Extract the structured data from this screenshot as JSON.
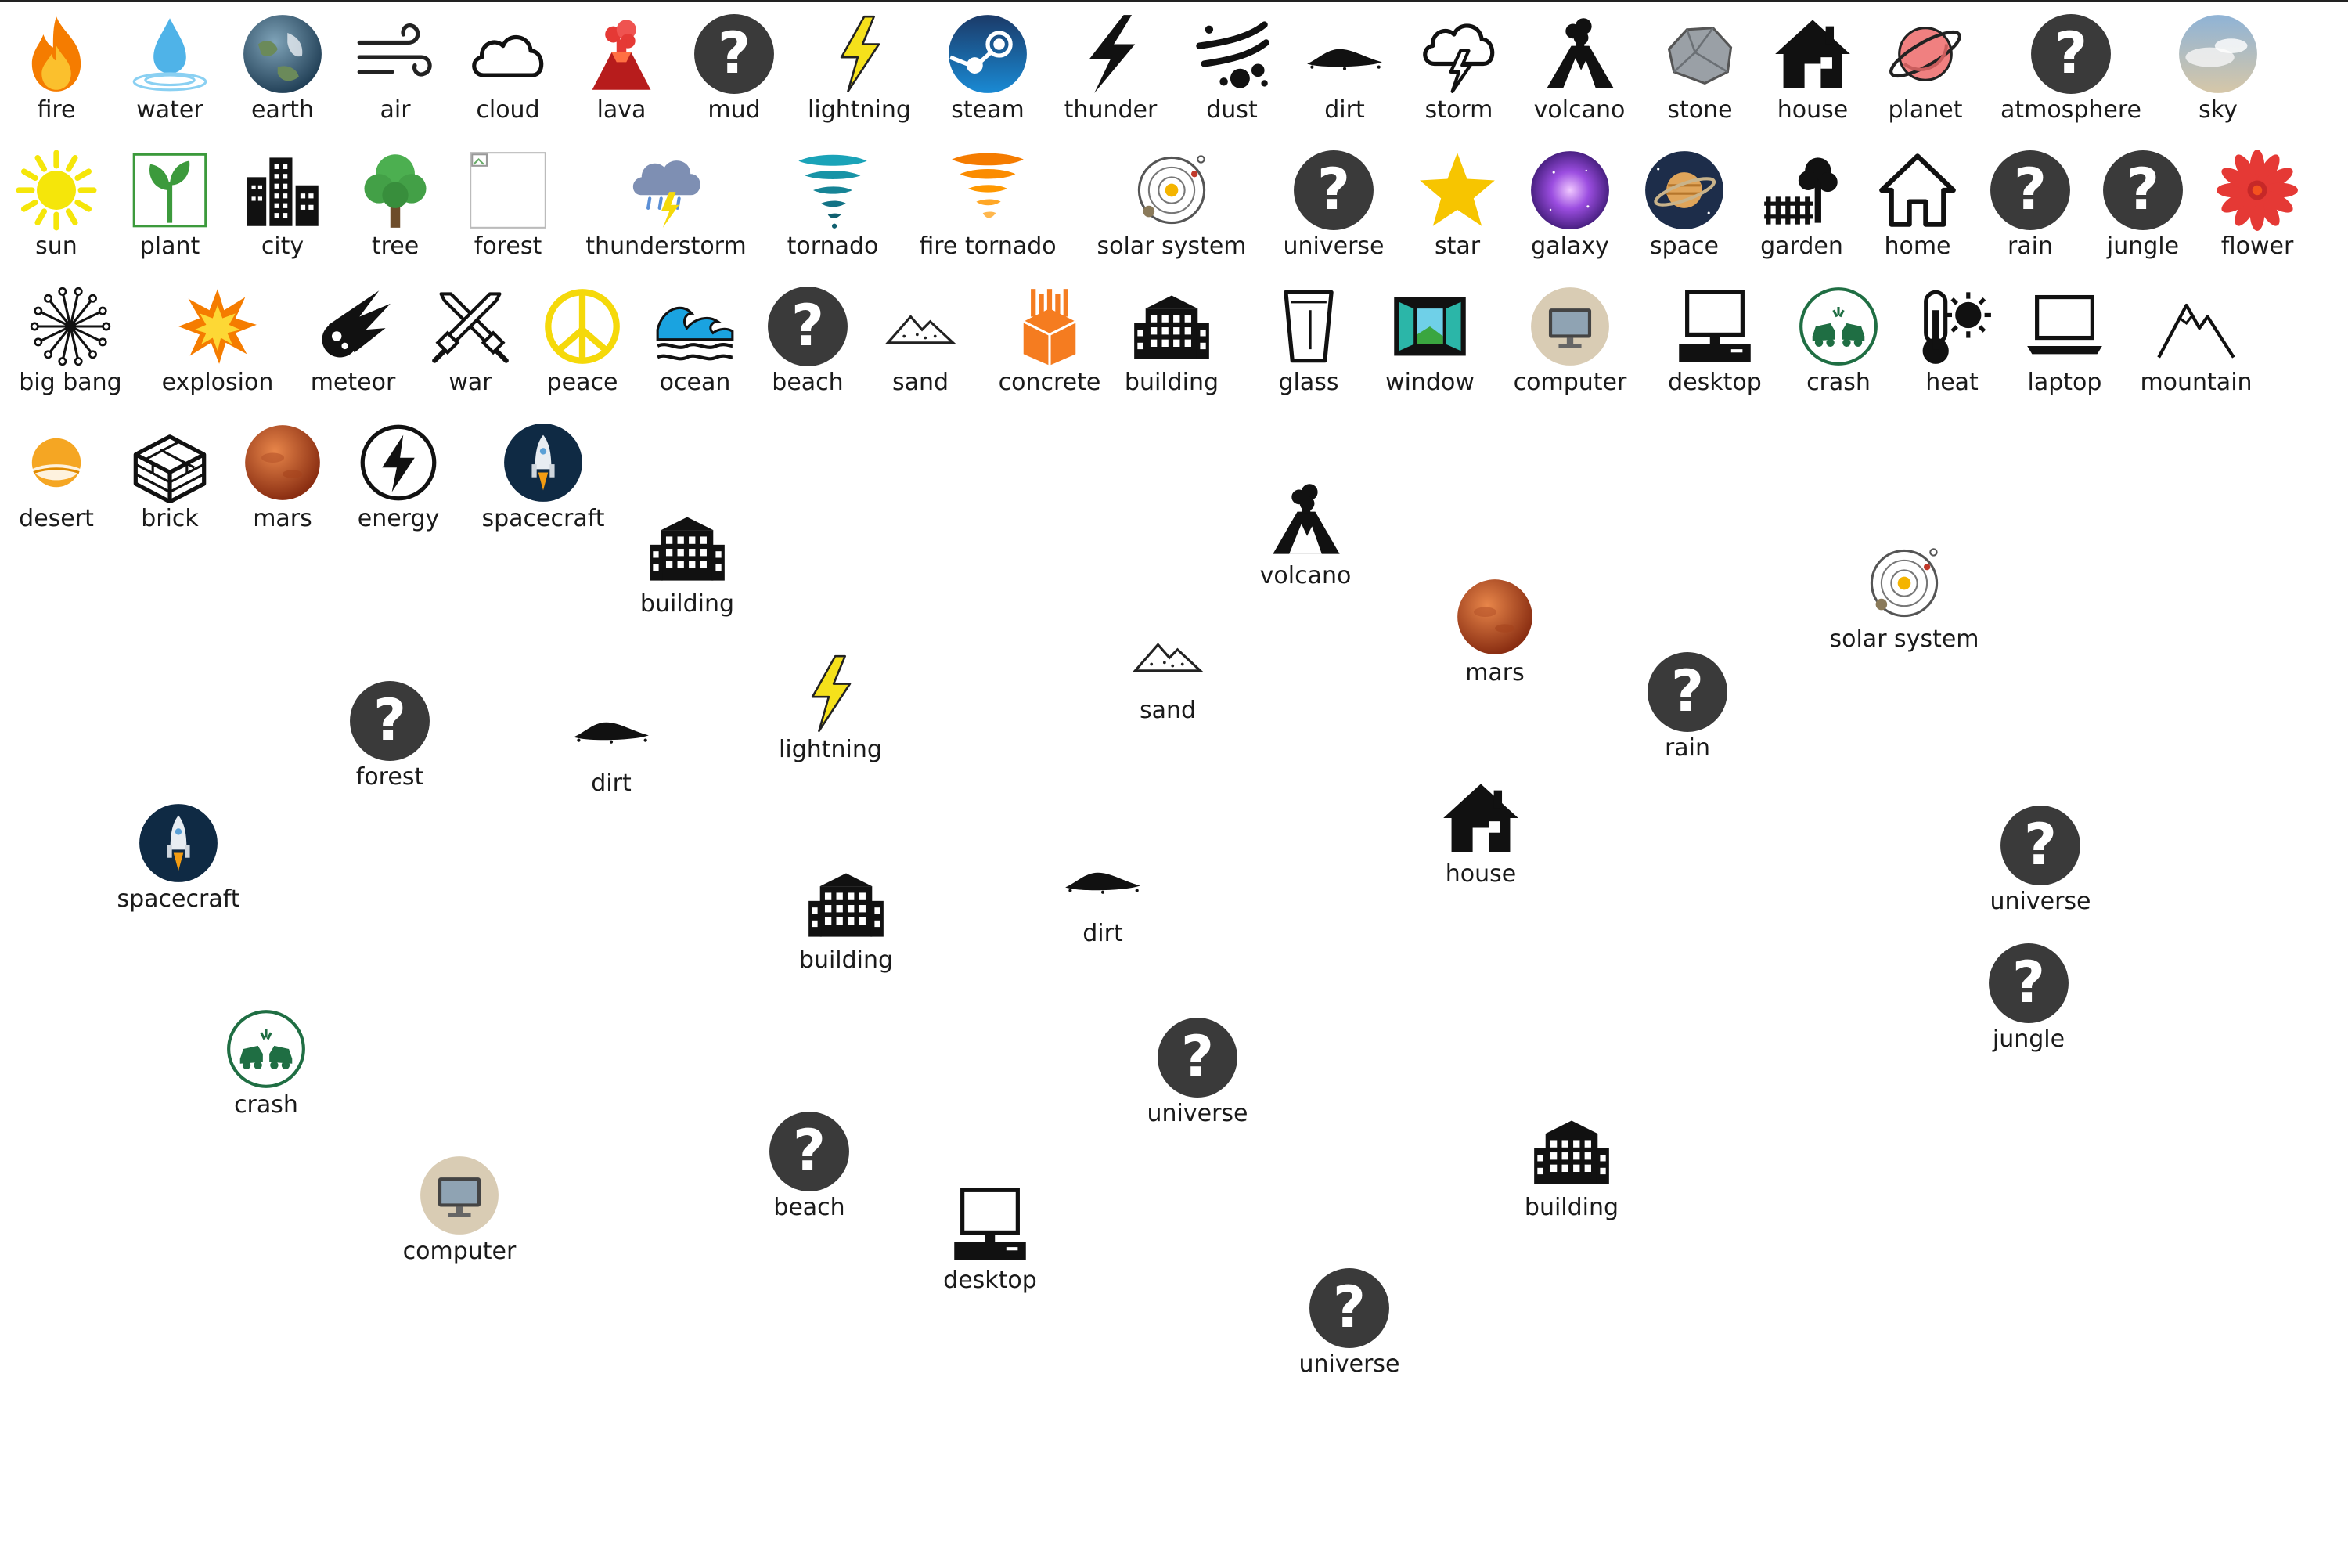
{
  "colors": {
    "background": "#ffffff",
    "text": "#1a1a1a",
    "unknown_icon": "#3a3a3a"
  },
  "inventory": [
    {
      "label": "fire",
      "icon": "fire-icon"
    },
    {
      "label": "water",
      "icon": "water-drop-icon"
    },
    {
      "label": "earth",
      "icon": "earth-globe-icon"
    },
    {
      "label": "air",
      "icon": "wind-icon"
    },
    {
      "label": "cloud",
      "icon": "cloud-icon"
    },
    {
      "label": "lava",
      "icon": "lava-volcano-icon"
    },
    {
      "label": "mud",
      "icon": "question-icon"
    },
    {
      "label": "lightning",
      "icon": "lightning-bolt-icon"
    },
    {
      "label": "steam",
      "icon": "steam-logo-icon"
    },
    {
      "label": "thunder",
      "icon": "thunder-bolt-icon"
    },
    {
      "label": "dust",
      "icon": "dust-icon"
    },
    {
      "label": "dirt",
      "icon": "dirt-pile-icon"
    },
    {
      "label": "storm",
      "icon": "storm-cloud-icon"
    },
    {
      "label": "volcano",
      "icon": "volcano-icon"
    },
    {
      "label": "stone",
      "icon": "stone-icon"
    },
    {
      "label": "house",
      "icon": "house-icon"
    },
    {
      "label": "planet",
      "icon": "planet-icon"
    },
    {
      "label": "atmosphere",
      "icon": "question-icon"
    },
    {
      "label": "sky",
      "icon": "sky-icon"
    },
    {
      "label": "sun",
      "icon": "sun-icon"
    },
    {
      "label": "plant",
      "icon": "plant-icon"
    },
    {
      "label": "city",
      "icon": "city-icon"
    },
    {
      "label": "tree",
      "icon": "tree-icon"
    },
    {
      "label": "forest",
      "icon": "broken-image-icon"
    },
    {
      "label": "thunderstorm",
      "icon": "thunderstorm-icon"
    },
    {
      "label": "tornado",
      "icon": "tornado-icon"
    },
    {
      "label": "fire tornado",
      "icon": "fire-tornado-icon"
    },
    {
      "label": "solar system",
      "icon": "solar-system-icon"
    },
    {
      "label": "universe",
      "icon": "question-icon"
    },
    {
      "label": "star",
      "icon": "star-icon"
    },
    {
      "label": "galaxy",
      "icon": "galaxy-icon"
    },
    {
      "label": "space",
      "icon": "space-planet-icon"
    },
    {
      "label": "garden",
      "icon": "garden-icon"
    },
    {
      "label": "home",
      "icon": "home-outline-icon"
    },
    {
      "label": "rain",
      "icon": "question-icon"
    },
    {
      "label": "jungle",
      "icon": "question-icon"
    },
    {
      "label": "flower",
      "icon": "flower-icon"
    },
    {
      "label": "big bang",
      "icon": "big-bang-icon"
    },
    {
      "label": "explosion",
      "icon": "explosion-icon"
    },
    {
      "label": "meteor",
      "icon": "meteor-icon"
    },
    {
      "label": "war",
      "icon": "crossed-swords-icon"
    },
    {
      "label": "peace",
      "icon": "peace-icon"
    },
    {
      "label": "ocean",
      "icon": "ocean-wave-icon"
    },
    {
      "label": "beach",
      "icon": "question-icon"
    },
    {
      "label": "sand",
      "icon": "sand-dunes-icon"
    },
    {
      "label": "concrete",
      "icon": "concrete-icon"
    },
    {
      "label": "building",
      "icon": "building-icon"
    },
    {
      "label": "glass",
      "icon": "glass-icon"
    },
    {
      "label": "window",
      "icon": "window-icon"
    },
    {
      "label": "computer",
      "icon": "computer-icon"
    },
    {
      "label": "desktop",
      "icon": "desktop-icon"
    },
    {
      "label": "crash",
      "icon": "car-crash-icon"
    },
    {
      "label": "heat",
      "icon": "heat-thermometer-icon"
    },
    {
      "label": "laptop",
      "icon": "laptop-icon"
    },
    {
      "label": "mountain",
      "icon": "mountain-icon"
    },
    {
      "label": "desert",
      "icon": "desert-icon"
    },
    {
      "label": "brick",
      "icon": "brick-icon"
    },
    {
      "label": "mars",
      "icon": "mars-icon"
    },
    {
      "label": "energy",
      "icon": "energy-bolt-icon"
    },
    {
      "label": "spacecraft",
      "icon": "spacecraft-icon"
    }
  ],
  "workspace": [
    {
      "label": "building",
      "icon": "building-icon"
    },
    {
      "label": "volcano",
      "icon": "volcano-icon"
    },
    {
      "label": "solar system",
      "icon": "solar-system-icon"
    },
    {
      "label": "sand",
      "icon": "sand-dunes-icon"
    },
    {
      "label": "mars",
      "icon": "mars-icon"
    },
    {
      "label": "forest",
      "icon": "question-icon"
    },
    {
      "label": "dirt",
      "icon": "dirt-pile-icon"
    },
    {
      "label": "lightning",
      "icon": "lightning-bolt-icon"
    },
    {
      "label": "rain",
      "icon": "question-icon"
    },
    {
      "label": "spacecraft",
      "icon": "spacecraft-icon"
    },
    {
      "label": "house",
      "icon": "house-icon"
    },
    {
      "label": "universe",
      "icon": "question-icon"
    },
    {
      "label": "building",
      "icon": "building-icon"
    },
    {
      "label": "dirt",
      "icon": "dirt-pile-icon"
    },
    {
      "label": "jungle",
      "icon": "question-icon"
    },
    {
      "label": "crash",
      "icon": "car-crash-icon"
    },
    {
      "label": "universe",
      "icon": "question-icon"
    },
    {
      "label": "beach",
      "icon": "question-icon"
    },
    {
      "label": "building",
      "icon": "building-icon"
    },
    {
      "label": "computer",
      "icon": "computer-icon"
    },
    {
      "label": "desktop",
      "icon": "desktop-icon"
    },
    {
      "label": "universe",
      "icon": "question-icon"
    }
  ]
}
